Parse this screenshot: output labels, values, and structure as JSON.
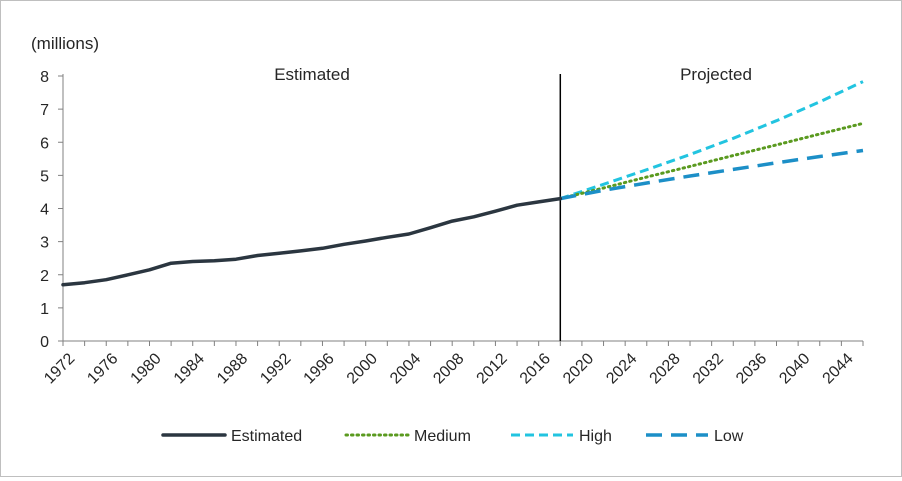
{
  "chart_data": {
    "type": "line",
    "ylabel": "(millions)",
    "ylim": [
      0,
      8
    ],
    "yticks": [
      "0",
      "1",
      "2",
      "3",
      "4",
      "5",
      "6",
      "7",
      "8"
    ],
    "xlim": [
      1972,
      2046
    ],
    "xticks": [
      "1972",
      "1976",
      "1980",
      "1984",
      "1988",
      "1992",
      "1996",
      "2000",
      "2004",
      "2008",
      "2012",
      "2016",
      "2020",
      "2024",
      "2028",
      "2032",
      "2036",
      "2040",
      "2044"
    ],
    "divider_year": 2018,
    "regions": {
      "left": "Estimated",
      "right": "Projected"
    },
    "grid": false,
    "legend_position": "bottom",
    "series": [
      {
        "name": "Estimated",
        "color": "#2b3640",
        "dash": "solid",
        "x": [
          1972,
          1974,
          1976,
          1978,
          1980,
          1982,
          1984,
          1986,
          1988,
          1990,
          1992,
          1994,
          1996,
          1998,
          2000,
          2002,
          2004,
          2006,
          2008,
          2010,
          2012,
          2014,
          2016,
          2018
        ],
        "values": [
          1.7,
          1.76,
          1.85,
          2.0,
          2.15,
          2.35,
          2.4,
          2.42,
          2.47,
          2.58,
          2.65,
          2.72,
          2.8,
          2.92,
          3.02,
          3.13,
          3.23,
          3.42,
          3.62,
          3.75,
          3.92,
          4.1,
          4.2,
          4.3
        ]
      },
      {
        "name": "Medium",
        "color": "#5a9a1f",
        "dash": "dotted",
        "x": [
          2018,
          2022,
          2026,
          2030,
          2034,
          2038,
          2042,
          2046
        ],
        "values": [
          4.3,
          4.62,
          4.95,
          5.27,
          5.6,
          5.92,
          6.25,
          6.57
        ]
      },
      {
        "name": "High",
        "color": "#22c4e0",
        "dash": "dashed",
        "x": [
          2018,
          2022,
          2026,
          2030,
          2034,
          2038,
          2042,
          2046
        ],
        "values": [
          4.3,
          4.73,
          5.17,
          5.63,
          6.12,
          6.65,
          7.22,
          7.83
        ]
      },
      {
        "name": "Low",
        "color": "#1c8fc7",
        "dash": "longdash",
        "x": [
          2018,
          2022,
          2026,
          2030,
          2034,
          2038,
          2042,
          2046
        ],
        "values": [
          4.3,
          4.55,
          4.77,
          4.98,
          5.18,
          5.38,
          5.57,
          5.75
        ]
      }
    ]
  }
}
